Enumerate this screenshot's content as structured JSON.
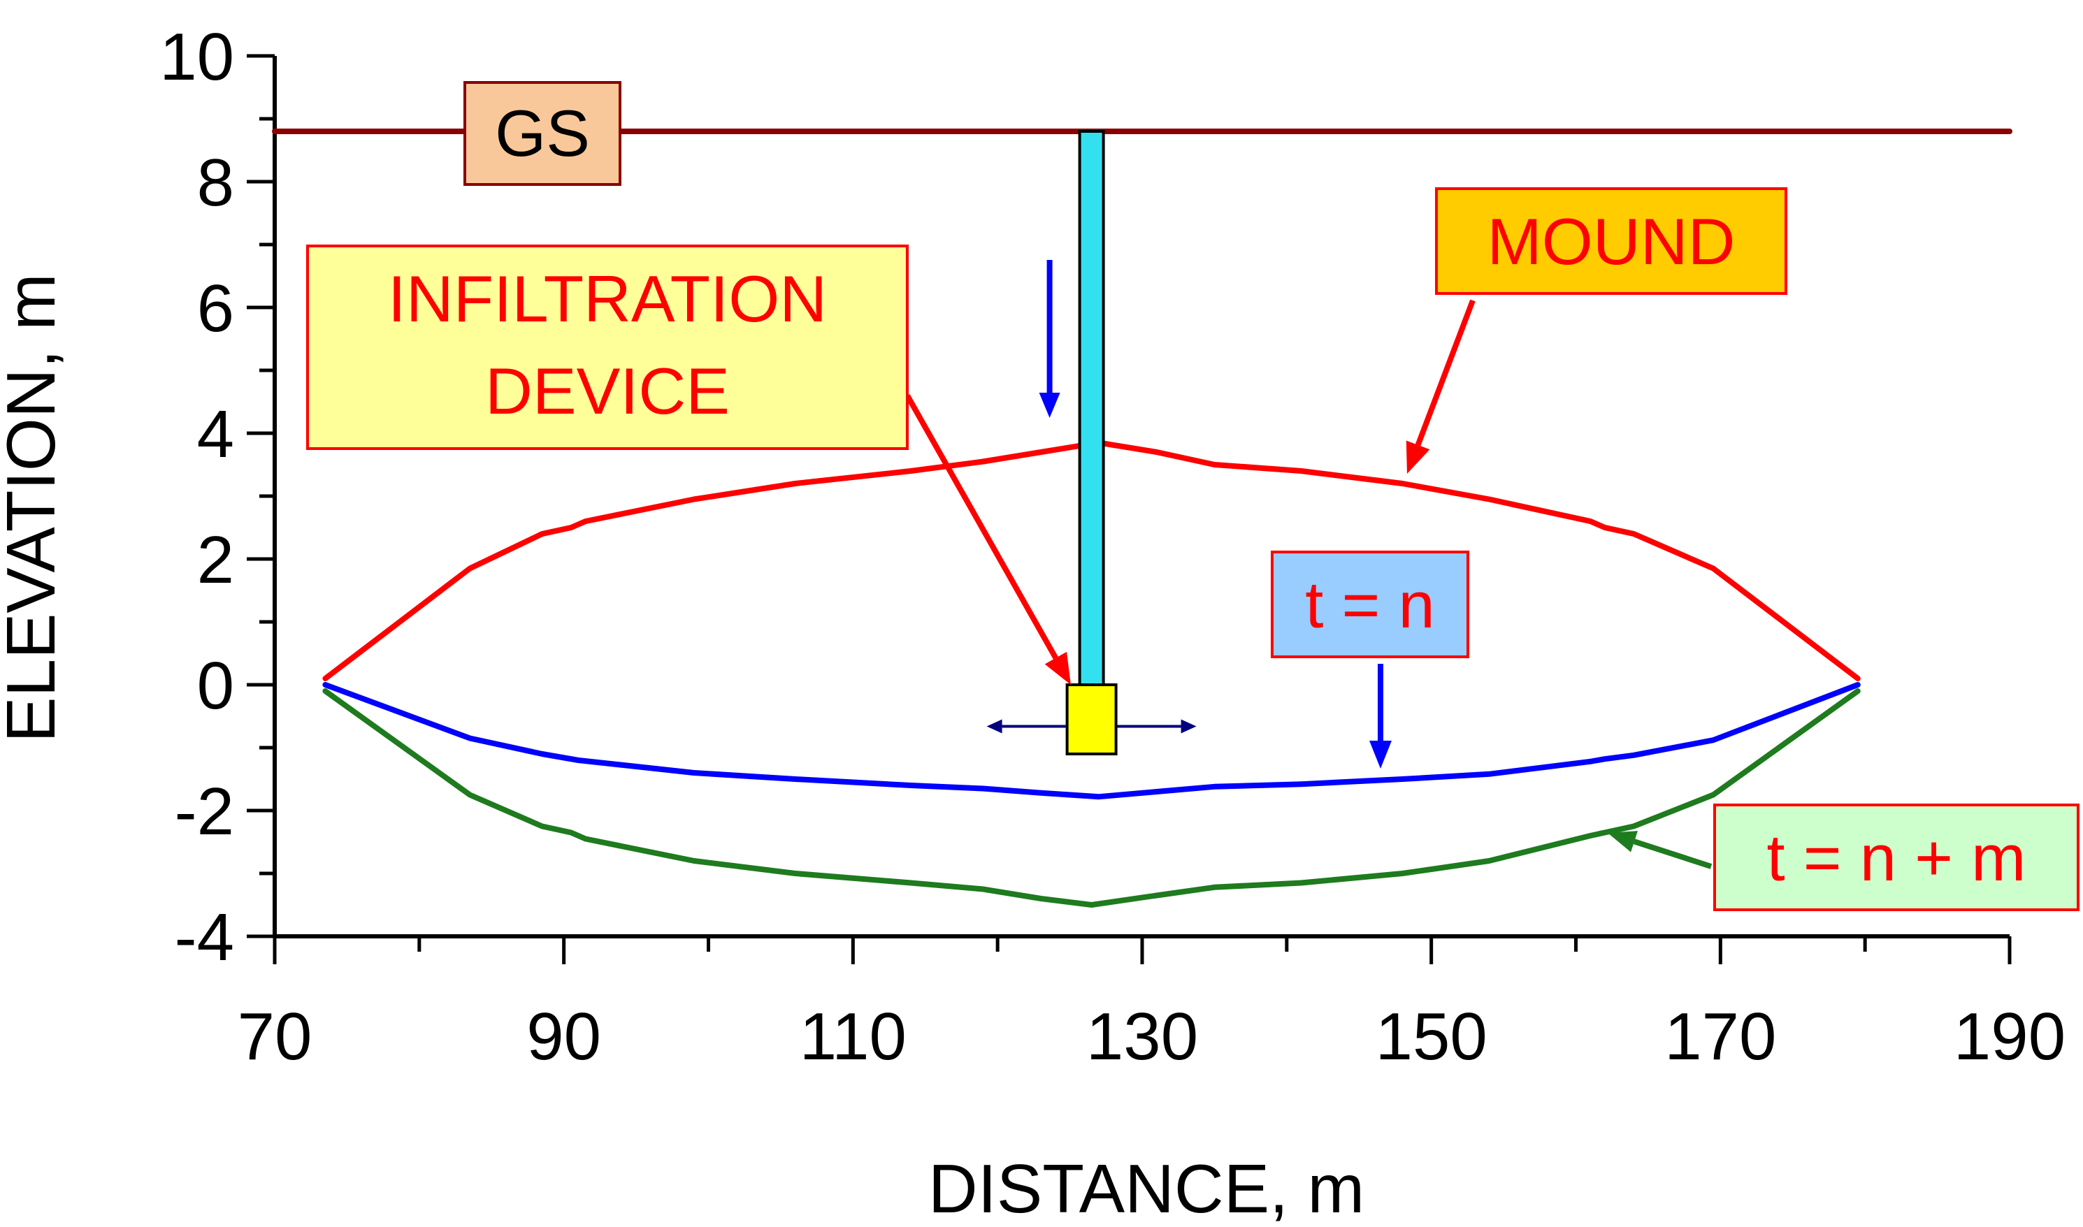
{
  "chart_data": {
    "type": "line",
    "xlabel": "DISTANCE, m",
    "ylabel": "ELEVATION, m",
    "xlim": [
      70,
      190
    ],
    "ylim": [
      -4,
      10
    ],
    "x_ticks": [
      70,
      90,
      110,
      130,
      150,
      170,
      190
    ],
    "y_ticks": [
      -4,
      -2,
      0,
      2,
      4,
      6,
      8,
      10
    ],
    "grid": false,
    "series": [
      {
        "role": "ground-surface",
        "color": "#8B0000",
        "points": [
          [
            70,
            8.8
          ],
          [
            190,
            8.8
          ]
        ]
      },
      {
        "role": "mound",
        "color": "#FF0000",
        "points": [
          [
            73.5,
            0.1
          ],
          [
            83.5,
            1.85
          ],
          [
            88.5,
            2.4
          ],
          [
            90.5,
            2.5
          ],
          [
            91.5,
            2.6
          ],
          [
            99,
            2.95
          ],
          [
            106,
            3.2
          ],
          [
            114,
            3.4
          ],
          [
            119,
            3.55
          ],
          [
            123,
            3.7
          ],
          [
            127,
            3.85
          ],
          [
            131,
            3.7
          ],
          [
            135,
            3.5
          ],
          [
            141,
            3.4
          ],
          [
            148,
            3.2
          ],
          [
            154,
            2.95
          ],
          [
            161,
            2.6
          ],
          [
            162,
            2.5
          ],
          [
            164,
            2.4
          ],
          [
            169.5,
            1.85
          ],
          [
            179.5,
            0.1
          ]
        ]
      },
      {
        "role": "t-n",
        "color": "#0000FF",
        "points": [
          [
            73.5,
            0.0
          ],
          [
            83.5,
            -0.85
          ],
          [
            88.5,
            -1.1
          ],
          [
            91,
            -1.2
          ],
          [
            99,
            -1.4
          ],
          [
            106,
            -1.5
          ],
          [
            114,
            -1.6
          ],
          [
            119,
            -1.65
          ],
          [
            123,
            -1.72
          ],
          [
            127,
            -1.78
          ],
          [
            131,
            -1.7
          ],
          [
            135,
            -1.62
          ],
          [
            141,
            -1.58
          ],
          [
            148,
            -1.5
          ],
          [
            154,
            -1.42
          ],
          [
            161,
            -1.22
          ],
          [
            162,
            -1.18
          ],
          [
            164,
            -1.12
          ],
          [
            169.5,
            -0.88
          ],
          [
            179.5,
            0.0
          ]
        ]
      },
      {
        "role": "t-n-m",
        "color": "#1E7B1E",
        "points": [
          [
            73.5,
            -0.1
          ],
          [
            83.5,
            -1.75
          ],
          [
            88.5,
            -2.25
          ],
          [
            90.5,
            -2.35
          ],
          [
            91.5,
            -2.45
          ],
          [
            99,
            -2.8
          ],
          [
            106,
            -3.0
          ],
          [
            114,
            -3.15
          ],
          [
            119,
            -3.25
          ],
          [
            123,
            -3.4
          ],
          [
            126.5,
            -3.5
          ],
          [
            131,
            -3.35
          ],
          [
            135,
            -3.22
          ],
          [
            141,
            -3.15
          ],
          [
            148,
            -3.0
          ],
          [
            154,
            -2.8
          ],
          [
            161,
            -2.4
          ],
          [
            162,
            -2.35
          ],
          [
            164,
            -2.25
          ],
          [
            169.5,
            -1.75
          ],
          [
            179.5,
            -0.1
          ]
        ]
      }
    ],
    "device": {
      "pipe_color": "#33E0F0",
      "device_color": "#FFFF00",
      "x": 126.5,
      "pipe_top": 8.8,
      "pipe_bottom": 0.0,
      "device_bottom": -1.1
    },
    "annotations": [
      {
        "role": "gs",
        "text": [
          "GS"
        ],
        "text_color": "#000000",
        "box_fill": "#F9C89A",
        "border": "#8B0000"
      },
      {
        "role": "infiltration",
        "text": [
          "INFILTRATION",
          "DEVICE"
        ],
        "text_color": "#FF0000",
        "box_fill": "#FFFF99",
        "border": "#FF0000"
      },
      {
        "role": "mound",
        "text": [
          "MOUND"
        ],
        "text_color": "#FF0000",
        "box_fill": "#FFCC00",
        "border": "#FF0000"
      },
      {
        "role": "t-n",
        "text": [
          "t = n"
        ],
        "text_color": "#FF0000",
        "box_fill": "#99CCFF",
        "border": "#FF0000"
      },
      {
        "role": "t-n-m",
        "text": [
          "t = n + m"
        ],
        "text_color": "#FF0000",
        "box_fill": "#CCFFCC",
        "border": "#FF0000"
      }
    ]
  }
}
